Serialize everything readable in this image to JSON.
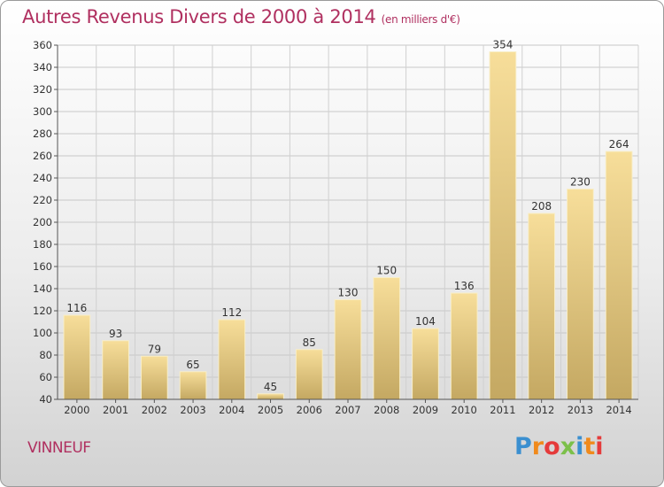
{
  "title": "Autres Revenus Divers de 2000 à 2014",
  "subtitle": "(en milliers d'€)",
  "place": "VINNEUF",
  "logo": {
    "letters": [
      "P",
      "r",
      "o",
      "x",
      "i",
      "t",
      "i"
    ],
    "colors": [
      "#3a8fd0",
      "#f08a1c",
      "#e53b3b",
      "#7cc04a",
      "#3a8fd0",
      "#f08a1c",
      "#e53b3b"
    ]
  },
  "chart_data": {
    "type": "bar",
    "categories": [
      "2000",
      "2001",
      "2002",
      "2003",
      "2004",
      "2005",
      "2006",
      "2007",
      "2008",
      "2009",
      "2010",
      "2011",
      "2012",
      "2013",
      "2014"
    ],
    "values": [
      116,
      93,
      79,
      65,
      112,
      45,
      85,
      130,
      150,
      104,
      136,
      354,
      208,
      230,
      264
    ],
    "ylim": [
      40,
      360
    ],
    "yticks": [
      40,
      60,
      80,
      100,
      120,
      140,
      160,
      180,
      200,
      220,
      240,
      260,
      280,
      300,
      320,
      340,
      360
    ],
    "grid": true,
    "bar_colors": [
      "#c4a862",
      "#f7de9a"
    ]
  }
}
